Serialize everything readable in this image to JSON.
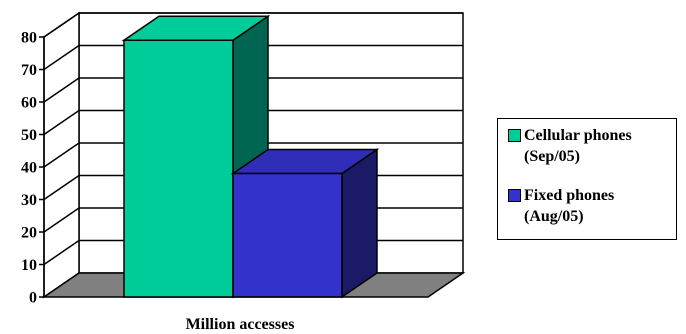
{
  "chart_data": {
    "type": "bar",
    "title": "",
    "xlabel": "Million accesses",
    "ylabel": "",
    "ylim": [
      0,
      80
    ],
    "yticks": [
      "0",
      "10",
      "20",
      "30",
      "40",
      "50",
      "60",
      "70",
      "80"
    ],
    "three_d": true,
    "grid": true,
    "legend_position": "right",
    "series": [
      {
        "name": "Cellular phones (Sep/05)",
        "legend_lines": [
          "Cellular phones",
          "(Sep/05)"
        ],
        "value": 79,
        "color": "#00CC99",
        "side_color": "#006651",
        "top_color": "#00CC99"
      },
      {
        "name": "Fixed phones (Aug/05)",
        "legend_lines": [
          "Fixed phones",
          "(Aug/05)"
        ],
        "value": 38,
        "color": "#3333CC",
        "side_color": "#1A1A66",
        "top_color": "#2E2EB8"
      }
    ],
    "floor_color": "#808080"
  }
}
